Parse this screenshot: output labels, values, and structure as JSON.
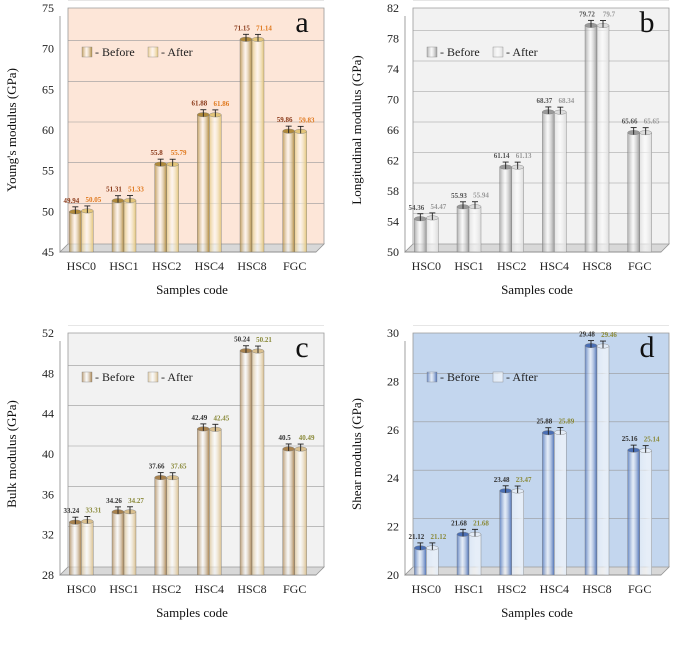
{
  "chart_data": [
    {
      "id": "a",
      "type": "bar",
      "panel_letter": "a",
      "categories": [
        "HSC0",
        "HSC1",
        "HSC2",
        "HSC4",
        "HSC8",
        "FGC"
      ],
      "series": [
        {
          "name": "- Before",
          "values": [
            49.94,
            51.31,
            55.8,
            61.88,
            71.15,
            59.86
          ],
          "labels": [
            "49.94",
            "51.31",
            "55.8",
            "61.88",
            "71.15",
            "59.86"
          ]
        },
        {
          "name": "- After",
          "values": [
            50.05,
            51.33,
            55.79,
            61.86,
            71.14,
            59.83
          ],
          "labels": [
            "50.05",
            "51.33",
            "55.79",
            "61.86",
            "71.14",
            "59.83"
          ]
        }
      ],
      "xlabel": "Samples code",
      "ylabel": "Young's modulus (GPa)",
      "ylim": [
        45,
        75
      ],
      "yticks": [
        45,
        50,
        55,
        60,
        65,
        70,
        75
      ],
      "colors": {
        "bg": "#fde6d8",
        "before": "#b08a3c",
        "after": "#e3c57a",
        "label_before": "#8a3a1a",
        "label_after": "#e07a20"
      }
    },
    {
      "id": "b",
      "type": "bar",
      "panel_letter": "b",
      "categories": [
        "HSC0",
        "HSC1",
        "HSC2",
        "HSC4",
        "HSC8",
        "FGC"
      ],
      "series": [
        {
          "name": "- Before",
          "values": [
            54.36,
            55.93,
            61.14,
            68.37,
            79.72,
            65.66
          ],
          "labels": [
            "54.36",
            "55.93",
            "61.14",
            "68.37",
            "79.72",
            "65.66"
          ]
        },
        {
          "name": "- After",
          "values": [
            54.47,
            55.94,
            61.13,
            68.34,
            79.7,
            65.65
          ],
          "labels": [
            "54.47",
            "55.94",
            "61.13",
            "68.34",
            "79.7",
            "65.65"
          ]
        }
      ],
      "xlabel": "Samples code",
      "ylabel": "Longitudinal modulus (GPa)",
      "ylim": [
        50,
        82
      ],
      "yticks": [
        50,
        54,
        58,
        62,
        66,
        70,
        74,
        78,
        82
      ],
      "colors": {
        "bg": "#f2f2f2",
        "before": "#9a9a9a",
        "after": "#dcdcdc",
        "label_before": "#555555",
        "label_after": "#999999"
      }
    },
    {
      "id": "c",
      "type": "bar",
      "panel_letter": "c",
      "categories": [
        "HSC0",
        "HSC1",
        "HSC2",
        "HSC4",
        "HSC8",
        "FGC"
      ],
      "series": [
        {
          "name": "- Before",
          "values": [
            33.24,
            34.26,
            37.66,
            42.49,
            50.24,
            40.5
          ],
          "labels": [
            "33.24",
            "34.26",
            "37.66",
            "42.49",
            "50.24",
            "40.5"
          ]
        },
        {
          "name": "- After",
          "values": [
            33.31,
            34.27,
            37.65,
            42.45,
            50.21,
            40.49
          ],
          "labels": [
            "33.31",
            "34.27",
            "37.65",
            "42.45",
            "50.21",
            "40.49"
          ]
        }
      ],
      "xlabel": "Samples code",
      "ylabel": "Bulk modulus (GPa)",
      "ylim": [
        28,
        52
      ],
      "yticks": [
        28,
        32,
        36,
        40,
        44,
        48,
        52
      ],
      "colors": {
        "bg": "#f2f2f2",
        "before": "#a8824e",
        "after": "#d9bf8e",
        "label_before": "#333333",
        "label_after": "#8a8a3a"
      }
    },
    {
      "id": "d",
      "type": "bar",
      "panel_letter": "d",
      "categories": [
        "HSC0",
        "HSC1",
        "HSC2",
        "HSC4",
        "HSC8",
        "FGC"
      ],
      "series": [
        {
          "name": "- Before",
          "values": [
            21.12,
            21.68,
            23.48,
            25.88,
            29.48,
            25.16
          ],
          "labels": [
            "21.12",
            "21.68",
            "23.48",
            "25.88",
            "29.48",
            "25.16"
          ]
        },
        {
          "name": "- After",
          "values": [
            21.12,
            21.68,
            23.47,
            25.89,
            29.46,
            25.14
          ],
          "labels": [
            "21.12",
            "21.68",
            "23.47",
            "25.89",
            "29.46",
            "25.14"
          ]
        }
      ],
      "xlabel": "Samples code",
      "ylabel": "Shear modulus (GPa)",
      "ylim": [
        20,
        30
      ],
      "yticks": [
        20,
        22,
        24,
        26,
        28,
        30
      ],
      "colors": {
        "bg": "#c3d6ee",
        "before": "#4a6fb5",
        "after": "#e3ecf7",
        "label_before": "#333333",
        "label_after": "#8a8a3a"
      }
    }
  ]
}
